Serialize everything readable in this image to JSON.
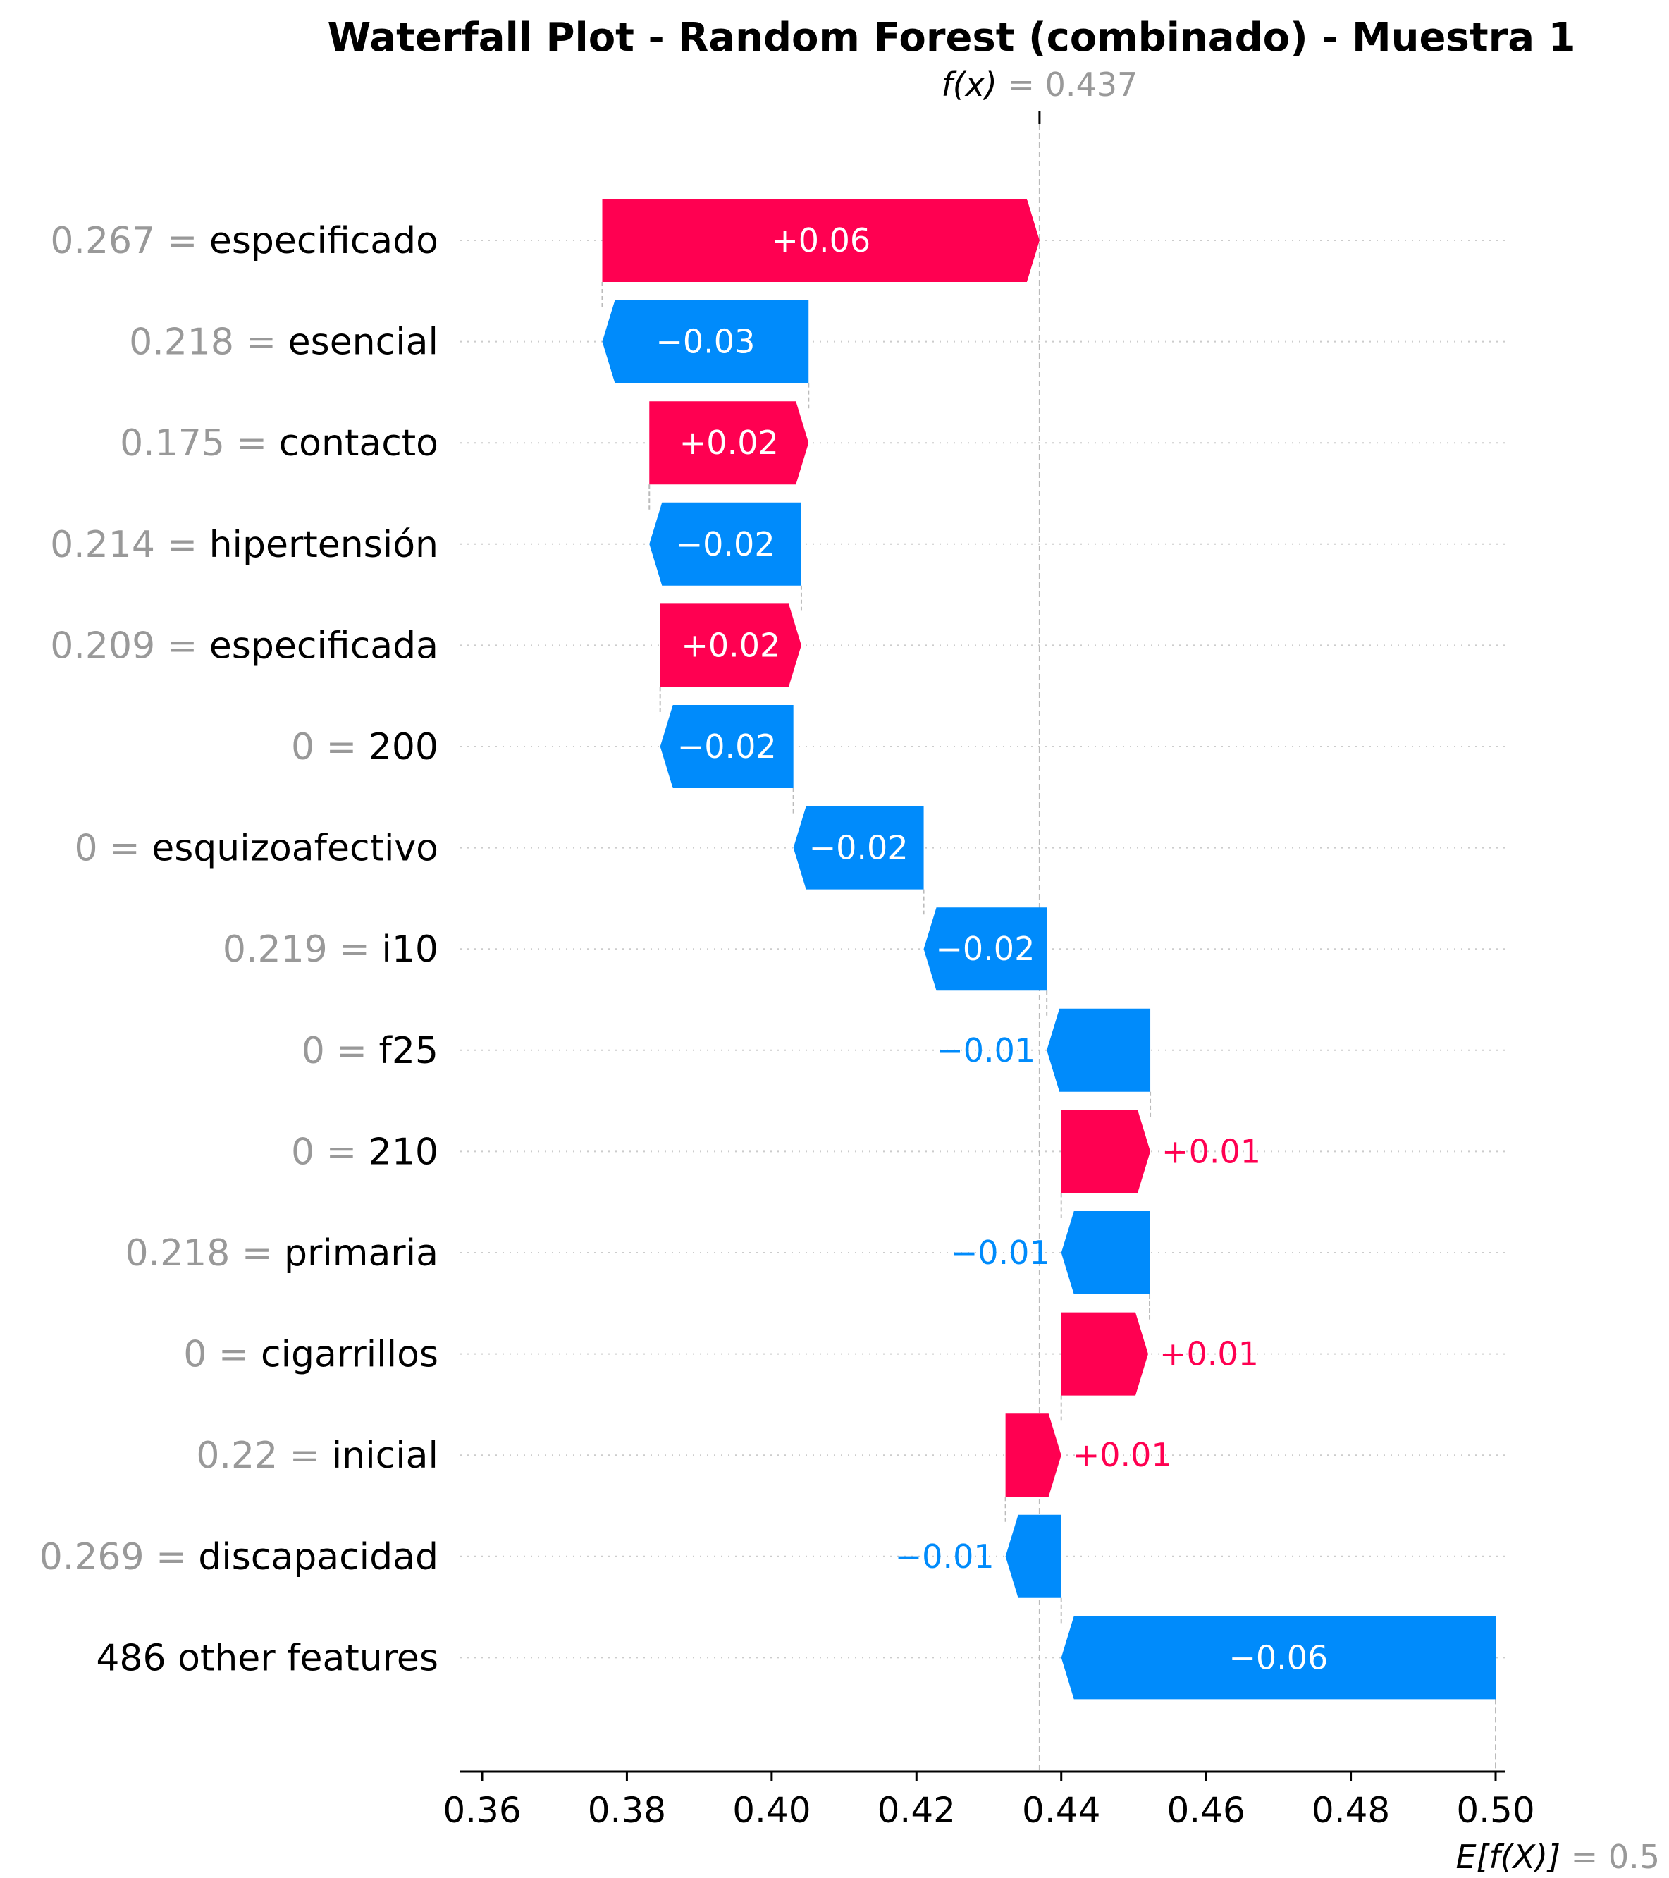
{
  "chart_data": {
    "type": "bar",
    "subtype": "waterfall",
    "title": "Waterfall Plot - Random Forest (combinado) - Muestra 1",
    "fx_label": "f(x)",
    "fx_value": "0.437",
    "ex_label": "E[f(X)]",
    "ex_value": "0.5",
    "base_value": 0.5,
    "output_value": 0.437,
    "xlim": [
      0.357,
      0.501
    ],
    "x_ticks": [
      0.36,
      0.38,
      0.4,
      0.42,
      0.44,
      0.46,
      0.48,
      0.5
    ],
    "x_tick_labels": [
      "0.36",
      "0.38",
      "0.40",
      "0.42",
      "0.44",
      "0.46",
      "0.48",
      "0.50"
    ],
    "colors": {
      "positive": "#ff0051",
      "negative": "#008bfb",
      "muted": "#999999"
    },
    "features": [
      {
        "value": "0.267",
        "name": "especificado",
        "contribution": 0.0604,
        "start": 0.3766,
        "label": "+0.06"
      },
      {
        "value": "0.218",
        "name": "esencial",
        "contribution": -0.0285,
        "start": 0.4051,
        "label": "−0.03"
      },
      {
        "value": "0.175",
        "name": "contacto",
        "contribution": 0.022,
        "start": 0.3831,
        "label": "+0.02"
      },
      {
        "value": "0.214",
        "name": "hipertensión",
        "contribution": -0.021,
        "start": 0.4041,
        "label": "−0.02"
      },
      {
        "value": "0.209",
        "name": "especificada",
        "contribution": 0.0195,
        "start": 0.3846,
        "label": "+0.02"
      },
      {
        "value": "0",
        "name": "200",
        "contribution": -0.0184,
        "start": 0.403,
        "label": "−0.02"
      },
      {
        "value": "0",
        "name": "esquizoafectivo",
        "contribution": -0.018,
        "start": 0.421,
        "label": "−0.02"
      },
      {
        "value": "0.219",
        "name": "i10",
        "contribution": -0.017,
        "start": 0.438,
        "label": "−0.02"
      },
      {
        "value": "0",
        "name": "f25",
        "contribution": -0.0143,
        "start": 0.4523,
        "label": "−0.01"
      },
      {
        "value": "0",
        "name": "210",
        "contribution": 0.0123,
        "start": 0.44,
        "label": "+0.01"
      },
      {
        "value": "0.218",
        "name": "primaria",
        "contribution": -0.0122,
        "start": 0.4522,
        "label": "−0.01"
      },
      {
        "value": "0",
        "name": "cigarrillos",
        "contribution": 0.012,
        "start": 0.44,
        "label": "+0.01"
      },
      {
        "value": "0.22",
        "name": "inicial",
        "contribution": 0.0077,
        "start": 0.4323,
        "label": "+0.01"
      },
      {
        "value": "0.269",
        "name": "discapacidad",
        "contribution": -0.0077,
        "start": 0.44,
        "label": "−0.01"
      },
      {
        "value": "",
        "name": "486 other features",
        "contribution": -0.06,
        "start": 0.5,
        "label": "−0.06"
      }
    ]
  }
}
